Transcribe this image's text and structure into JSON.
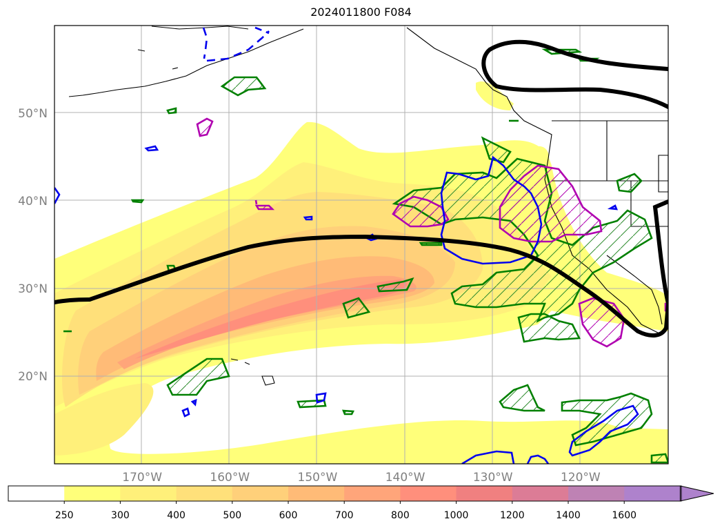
{
  "title": "2024011800 F084",
  "map": {
    "lon_ticks": [
      {
        "label": "170°W",
        "value": -170
      },
      {
        "label": "160°W",
        "value": -160
      },
      {
        "label": "150°W",
        "value": -150
      },
      {
        "label": "140°W",
        "value": -140
      },
      {
        "label": "130°W",
        "value": -130
      },
      {
        "label": "120°W",
        "value": -120
      }
    ],
    "lat_ticks": [
      {
        "label": "50°N",
        "value": 50
      },
      {
        "label": "40°N",
        "value": 40
      },
      {
        "label": "30°N",
        "value": 30
      },
      {
        "label": "20°N",
        "value": 20
      }
    ],
    "lon_range": [
      -180,
      -110
    ],
    "lat_range": [
      10,
      60
    ],
    "grid": true
  },
  "colorbar": {
    "ticks": [
      "250",
      "300",
      "400",
      "500",
      "600",
      "700",
      "800",
      "1000",
      "1200",
      "1400",
      "1600"
    ],
    "colors": [
      "#ffff7a",
      "#fff07a",
      "#ffe07a",
      "#ffd07a",
      "#ffbb77",
      "#ffa57a",
      "#ff8f7c",
      "#f08080",
      "#dc7c96",
      "#be82b4",
      "#ae82cc"
    ],
    "extend": "max"
  }
}
